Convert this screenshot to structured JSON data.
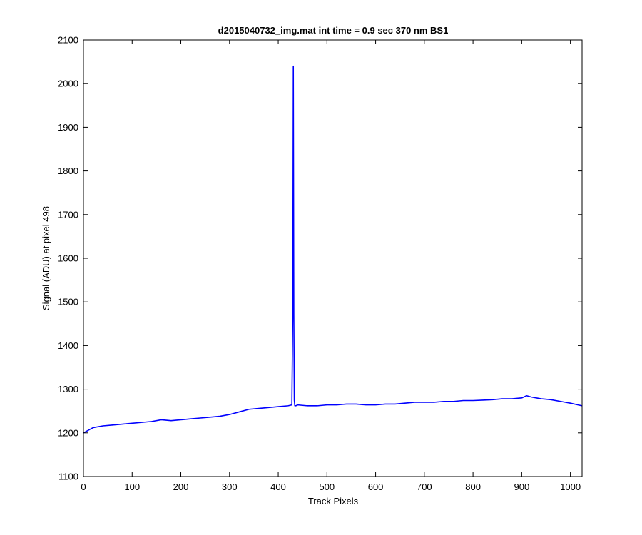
{
  "chart_data": {
    "type": "line",
    "title": "d2015040732_img.mat int time = 0.9 sec  370 nm BS1",
    "xlabel": "Track Pixels",
    "ylabel": "Signal (ADU) at pixel 498",
    "xlim": [
      0,
      1024
    ],
    "ylim": [
      1100,
      2100
    ],
    "xticks": [
      0,
      100,
      200,
      300,
      400,
      500,
      600,
      700,
      800,
      900,
      1000
    ],
    "yticks": [
      1100,
      1200,
      1300,
      1400,
      1500,
      1600,
      1700,
      1800,
      1900,
      2000,
      2100
    ],
    "grid": false,
    "line_color": "#0000ff",
    "series": [
      {
        "x": [
          0,
          20,
          40,
          60,
          80,
          100,
          120,
          140,
          160,
          180,
          200,
          220,
          240,
          260,
          280,
          300,
          320,
          340,
          360,
          380,
          400,
          420,
          428,
          430,
          431,
          432,
          433,
          434,
          436,
          440,
          460,
          480,
          500,
          520,
          540,
          560,
          580,
          600,
          620,
          640,
          660,
          680,
          700,
          720,
          740,
          760,
          780,
          800,
          820,
          840,
          860,
          880,
          900,
          910,
          920,
          940,
          960,
          980,
          1000,
          1024
        ],
        "y": [
          1200,
          1212,
          1216,
          1218,
          1220,
          1222,
          1224,
          1226,
          1230,
          1228,
          1230,
          1232,
          1234,
          1236,
          1238,
          1242,
          1248,
          1254,
          1256,
          1258,
          1260,
          1262,
          1264,
          1500,
          2040,
          1470,
          1275,
          1262,
          1262,
          1264,
          1262,
          1262,
          1264,
          1264,
          1266,
          1266,
          1264,
          1264,
          1266,
          1266,
          1268,
          1270,
          1270,
          1270,
          1272,
          1272,
          1274,
          1274,
          1275,
          1276,
          1278,
          1278,
          1280,
          1285,
          1282,
          1278,
          1276,
          1272,
          1268,
          1262
        ]
      }
    ]
  }
}
